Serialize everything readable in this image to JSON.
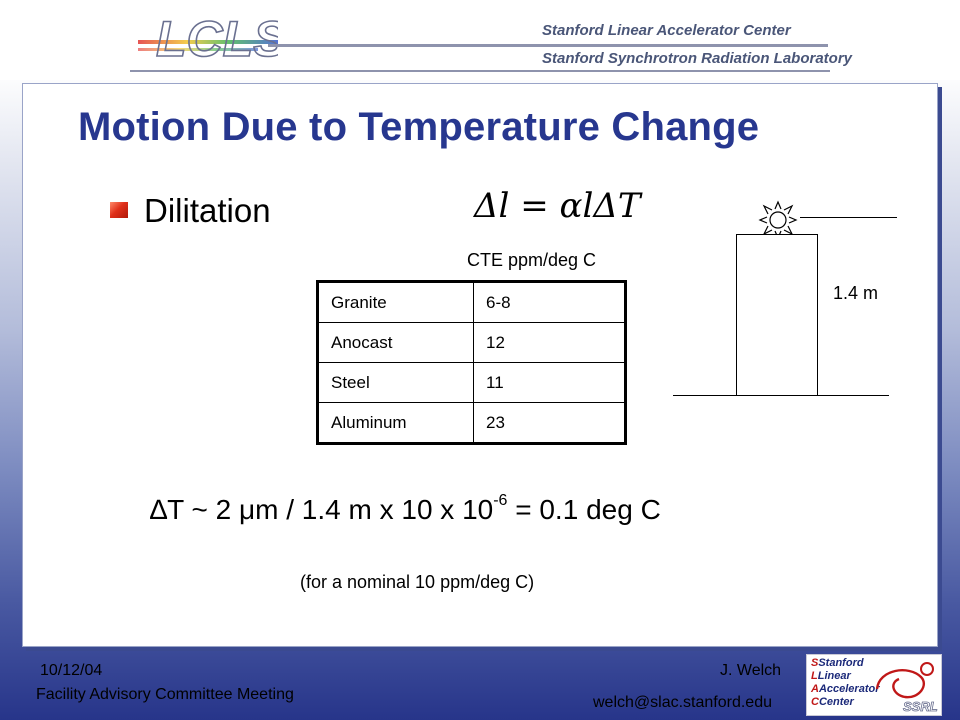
{
  "header": {
    "logo_text": "LCLS",
    "org_line1": "Stanford Linear Accelerator Center",
    "org_line2": "Stanford Synchrotron Radiation Laboratory"
  },
  "slide": {
    "title": "Motion Due to Temperature Change",
    "bullet": "Dilitation",
    "formula": "Δl = αlΔT",
    "table_caption": "CTE ppm/deg C",
    "table": [
      {
        "material": "Granite",
        "cte": "6-8"
      },
      {
        "material": "Anocast",
        "cte": "12"
      },
      {
        "material": "Steel",
        "cte": "11"
      },
      {
        "material": "Aluminum",
        "cte": "23"
      }
    ],
    "diagram_height_label": "1.4 m",
    "calc_main": "∆T ~ 2 μm / 1.4 m x 10 x 10",
    "calc_exp": "-6",
    "calc_tail": " = 0.1 deg C",
    "note": "(for a nominal 10 ppm/deg C)"
  },
  "footer": {
    "date": "10/12/04",
    "meeting": "Facility Advisory Committee Meeting",
    "author": "J. Welch",
    "email": "welch@slac.stanford.edu",
    "slac_logo_lines": [
      "Stanford",
      "Linear",
      "Accelerator",
      "Center"
    ],
    "ssrl_text": "SSRL"
  },
  "icons": {
    "sun": "sun-icon",
    "bullet": "square-bullet-icon"
  },
  "colors": {
    "title": "#27378f",
    "bullet": "#e0301a",
    "background_bottom": "#27358a"
  }
}
